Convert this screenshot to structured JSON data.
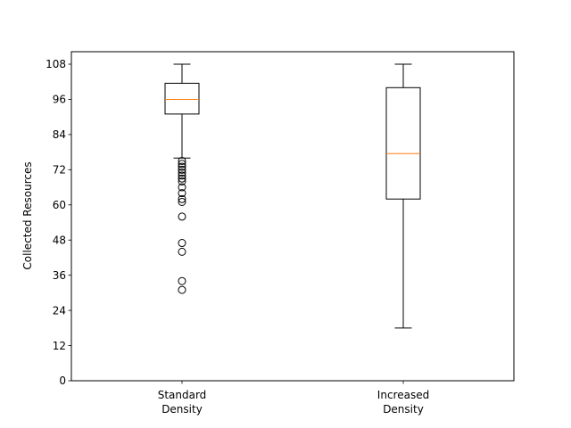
{
  "chart_data": {
    "type": "box",
    "ylabel": "Collected Resources",
    "ylim": [
      0,
      110
    ],
    "yticks": [
      0,
      12,
      24,
      36,
      48,
      60,
      72,
      84,
      96,
      108
    ],
    "grid": false,
    "colors": {
      "box": "#000000",
      "median": "#ff7f0e",
      "flier": "#000000"
    },
    "categories": [
      [
        "Standard",
        "Density"
      ],
      [
        "Increased",
        "Density"
      ]
    ],
    "boxes": [
      {
        "whisker_low": 76,
        "q1": 91,
        "median": 96,
        "q3": 101.5,
        "whisker_high": 108,
        "fliers": [
          75,
          74,
          73,
          72,
          71,
          70,
          69,
          68,
          66,
          64,
          62,
          61,
          56,
          47,
          44,
          34,
          31
        ]
      },
      {
        "whisker_low": 18,
        "q1": 62,
        "median": 77.5,
        "q3": 100,
        "whisker_high": 108,
        "fliers": []
      }
    ]
  }
}
